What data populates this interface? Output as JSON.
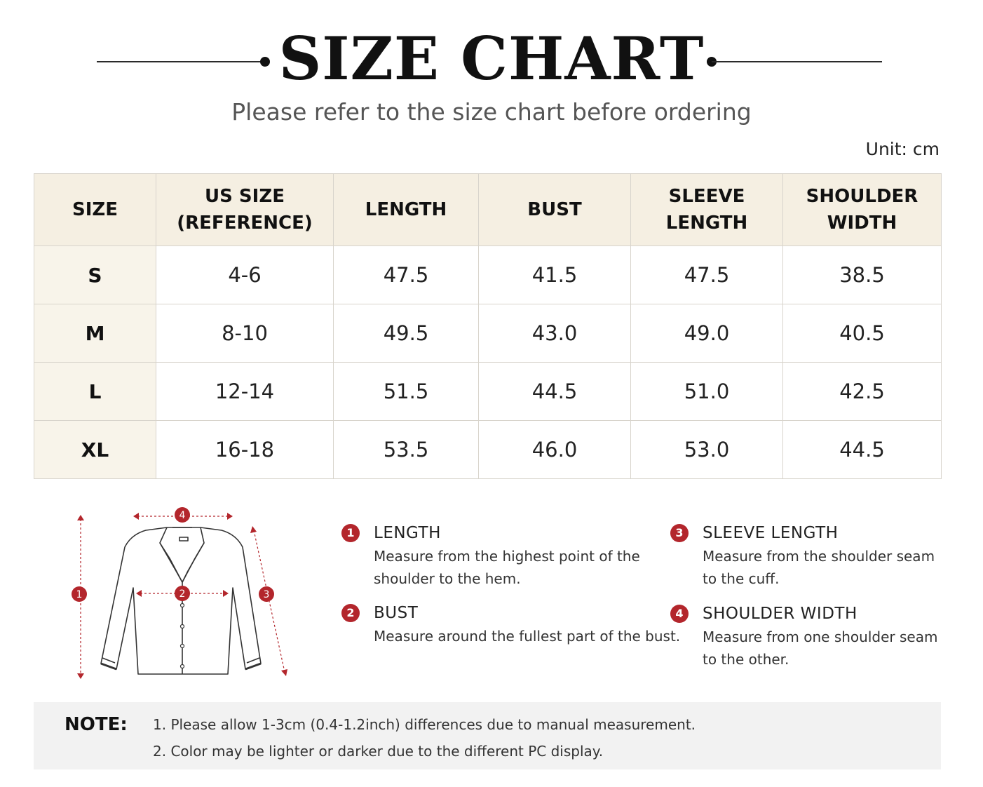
{
  "header": {
    "title": "SIZE CHART",
    "subtitle": "Please refer to the size chart before ordering",
    "unit": "Unit:  cm"
  },
  "table": {
    "headers": [
      [
        "SIZE"
      ],
      [
        "US SIZE",
        "(REFERENCE)"
      ],
      [
        "LENGTH"
      ],
      [
        "BUST"
      ],
      [
        "SLEEVE",
        "LENGTH"
      ],
      [
        "SHOULDER",
        "WIDTH"
      ]
    ],
    "rows": [
      [
        "S",
        "4-6",
        "47.5",
        "41.5",
        "47.5",
        "38.5"
      ],
      [
        "M",
        "8-10",
        "49.5",
        "43.0",
        "49.0",
        "40.5"
      ],
      [
        "L",
        "12-14",
        "51.5",
        "44.5",
        "51.0",
        "42.5"
      ],
      [
        "XL",
        "16-18",
        "53.5",
        "46.0",
        "53.0",
        "44.5"
      ]
    ]
  },
  "diagram": {
    "markers": [
      "1",
      "2",
      "3",
      "4"
    ],
    "accent_color": "#b3262c"
  },
  "legend": [
    {
      "num": "1",
      "title": "LENGTH",
      "desc": [
        "Measure from the highest point of the",
        "shoulder to the hem."
      ]
    },
    {
      "num": "2",
      "title": "BUST",
      "desc": [
        "Measure around the fullest part of the bust."
      ]
    },
    {
      "num": "3",
      "title": "SLEEVE LENGTH",
      "desc": [
        "Measure from the shoulder seam",
        "to the cuff."
      ]
    },
    {
      "num": "4",
      "title": "SHOULDER WIDTH",
      "desc": [
        "Measure from one shoulder seam",
        "to the other."
      ]
    }
  ],
  "note": {
    "label": "NOTE:",
    "lines": [
      "1. Please allow 1-3cm (0.4-1.2inch) differences due to manual measurement.",
      "2. Color may be lighter or darker due to the different PC display."
    ]
  }
}
